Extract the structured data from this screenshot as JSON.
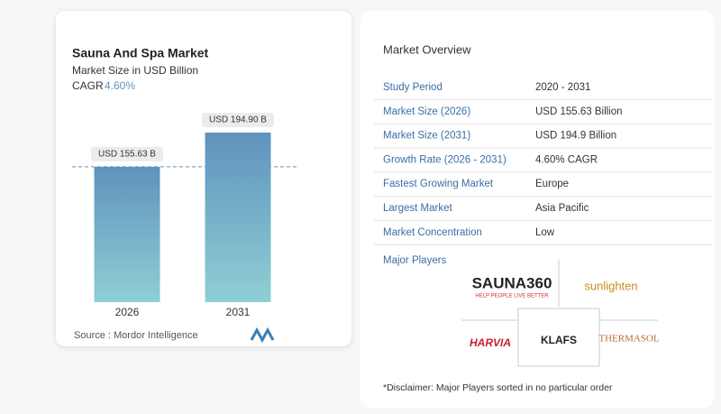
{
  "chart_data": {
    "type": "bar",
    "title": "Sauna And Spa Market",
    "subtitle": "Market Size in USD Billion",
    "cagr_label": "CAGR",
    "cagr_value": "4.60%",
    "categories": [
      "2026",
      "2031"
    ],
    "values": [
      155.63,
      194.9
    ],
    "value_labels": [
      "USD 155.63 B",
      "USD 194.90 B"
    ],
    "color": "#5f93bd",
    "source": "Source :  Mordor Intelligence"
  },
  "overview": {
    "title": "Market Overview",
    "rows": [
      [
        "Study Period",
        "2020 - 2031"
      ],
      [
        "Market Size (2026)",
        "USD 155.63 Billion"
      ],
      [
        "Market Size (2031)",
        "USD 194.9 Billion"
      ],
      [
        "Growth Rate (2026 - 2031)",
        "4.60% CAGR"
      ],
      [
        "Fastest Growing Market",
        "Europe"
      ],
      [
        "Largest Market",
        "Asia Pacific"
      ],
      [
        "Market Concentration",
        "Low"
      ]
    ],
    "players_title": "Major Players",
    "players": [
      "SAUNA360",
      "HELP PEOPLE LIVE BETTER",
      "sunlighten",
      "HARVIA",
      "KLAFS",
      "THERMASOL"
    ],
    "disclaimer": "*Disclaimer: Major Players sorted in no particular order"
  }
}
